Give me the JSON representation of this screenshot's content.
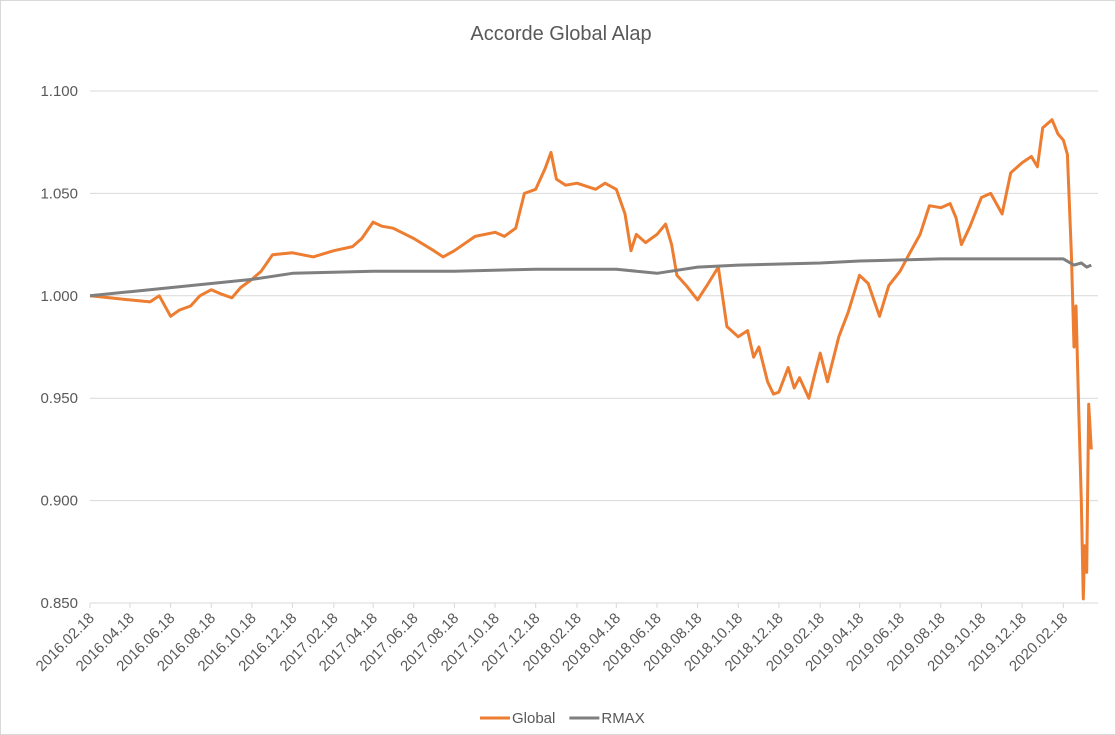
{
  "chart_data": {
    "type": "line",
    "title": "Accorde Global Alap",
    "legend": "bottom",
    "grid": true,
    "xlim": [
      "2016.02.18",
      "2020.04.10"
    ],
    "xticks": [
      "2016.02.18",
      "2016.04.18",
      "2016.06.18",
      "2016.08.18",
      "2016.10.18",
      "2016.12.18",
      "2017.02.18",
      "2017.04.18",
      "2017.06.18",
      "2017.08.18",
      "2017.10.18",
      "2017.12.18",
      "2018.02.18",
      "2018.04.18",
      "2018.06.18",
      "2018.08.18",
      "2018.10.18",
      "2018.12.18",
      "2019.02.18",
      "2019.04.18",
      "2019.06.18",
      "2019.08.18",
      "2019.10.18",
      "2019.12.18",
      "2020.02.18"
    ],
    "ylim": [
      0.85,
      1.1
    ],
    "yticks": [
      {
        "value": 0.85,
        "label": "0.850"
      },
      {
        "value": 0.9,
        "label": "0.900"
      },
      {
        "value": 0.95,
        "label": "0.950"
      },
      {
        "value": 1.0,
        "label": "1.000"
      },
      {
        "value": 1.05,
        "label": "1.050"
      },
      {
        "value": 1.1,
        "label": "1.100"
      }
    ],
    "series": [
      {
        "name": "Global",
        "color": "#ed7d31",
        "x": [
          "2016.02.18",
          "2016.03.18",
          "2016.04.18",
          "2016.05.18",
          "2016.06.01",
          "2016.06.18",
          "2016.07.01",
          "2016.07.18",
          "2016.08.01",
          "2016.08.18",
          "2016.09.01",
          "2016.09.18",
          "2016.10.01",
          "2016.10.18",
          "2016.11.01",
          "2016.11.18",
          "2016.12.18",
          "2017.01.18",
          "2017.02.18",
          "2017.03.18",
          "2017.04.01",
          "2017.04.18",
          "2017.05.01",
          "2017.05.18",
          "2017.06.18",
          "2017.07.18",
          "2017.08.01",
          "2017.08.18",
          "2017.09.18",
          "2017.10.18",
          "2017.11.01",
          "2017.11.18",
          "2017.12.01",
          "2017.12.18",
          "2018.01.01",
          "2018.01.10",
          "2018.01.18",
          "2018.02.01",
          "2018.02.18",
          "2018.03.18",
          "2018.04.01",
          "2018.04.18",
          "2018.05.01",
          "2018.05.10",
          "2018.05.18",
          "2018.06.01",
          "2018.06.18",
          "2018.07.01",
          "2018.07.10",
          "2018.07.18",
          "2018.08.01",
          "2018.08.18",
          "2018.09.01",
          "2018.09.18",
          "2018.10.01",
          "2018.10.18",
          "2018.11.01",
          "2018.11.10",
          "2018.11.18",
          "2018.12.01",
          "2018.12.10",
          "2018.12.18",
          "2019.01.01",
          "2019.01.10",
          "2019.01.18",
          "2019.02.01",
          "2019.02.10",
          "2019.02.18",
          "2019.03.01",
          "2019.03.18",
          "2019.04.01",
          "2019.04.18",
          "2019.05.01",
          "2019.05.18",
          "2019.06.01",
          "2019.06.18",
          "2019.07.01",
          "2019.07.18",
          "2019.08.01",
          "2019.08.18",
          "2019.09.01",
          "2019.09.10",
          "2019.09.18",
          "2019.10.01",
          "2019.10.18",
          "2019.11.01",
          "2019.11.18",
          "2019.12.01",
          "2019.12.18",
          "2020.01.01",
          "2020.01.10",
          "2020.01.18",
          "2020.02.01",
          "2020.02.10",
          "2020.02.18",
          "2020.02.24",
          "2020.03.01",
          "2020.03.05",
          "2020.03.08",
          "2020.03.12",
          "2020.03.16",
          "2020.03.19",
          "2020.03.21",
          "2020.03.24",
          "2020.03.27",
          "2020.03.31"
        ],
        "values": [
          1.0,
          0.999,
          0.998,
          0.997,
          1.0,
          0.99,
          0.993,
          0.995,
          1.0,
          1.003,
          1.001,
          0.999,
          1.004,
          1.008,
          1.012,
          1.02,
          1.021,
          1.019,
          1.022,
          1.024,
          1.028,
          1.036,
          1.034,
          1.033,
          1.028,
          1.022,
          1.019,
          1.022,
          1.029,
          1.031,
          1.029,
          1.033,
          1.05,
          1.052,
          1.062,
          1.07,
          1.057,
          1.054,
          1.055,
          1.052,
          1.055,
          1.052,
          1.04,
          1.022,
          1.03,
          1.026,
          1.03,
          1.035,
          1.025,
          1.01,
          1.005,
          0.998,
          1.005,
          1.014,
          0.985,
          0.98,
          0.983,
          0.97,
          0.975,
          0.958,
          0.952,
          0.953,
          0.965,
          0.955,
          0.96,
          0.95,
          0.962,
          0.972,
          0.958,
          0.98,
          0.992,
          1.01,
          1.006,
          0.99,
          1.005,
          1.012,
          1.02,
          1.03,
          1.044,
          1.043,
          1.045,
          1.038,
          1.025,
          1.034,
          1.048,
          1.05,
          1.04,
          1.06,
          1.065,
          1.068,
          1.063,
          1.082,
          1.086,
          1.079,
          1.076,
          1.069,
          1.02,
          0.975,
          0.995,
          0.945,
          0.9,
          0.852,
          0.878,
          0.865,
          0.947,
          0.925
        ]
      },
      {
        "name": "RMAX",
        "color": "#7f7f7f",
        "x": [
          "2016.02.18",
          "2016.04.18",
          "2016.06.18",
          "2016.08.18",
          "2016.10.18",
          "2016.12.18",
          "2017.04.18",
          "2017.08.18",
          "2017.12.18",
          "2018.04.18",
          "2018.06.18",
          "2018.08.18",
          "2018.10.18",
          "2019.02.18",
          "2019.04.18",
          "2019.08.18",
          "2020.02.18",
          "2020.03.05",
          "2020.03.16",
          "2020.03.24",
          "2020.03.31"
        ],
        "values": [
          1.0,
          1.002,
          1.004,
          1.006,
          1.008,
          1.011,
          1.012,
          1.012,
          1.013,
          1.013,
          1.011,
          1.014,
          1.015,
          1.016,
          1.017,
          1.018,
          1.018,
          1.015,
          1.016,
          1.014,
          1.015
        ]
      }
    ]
  }
}
